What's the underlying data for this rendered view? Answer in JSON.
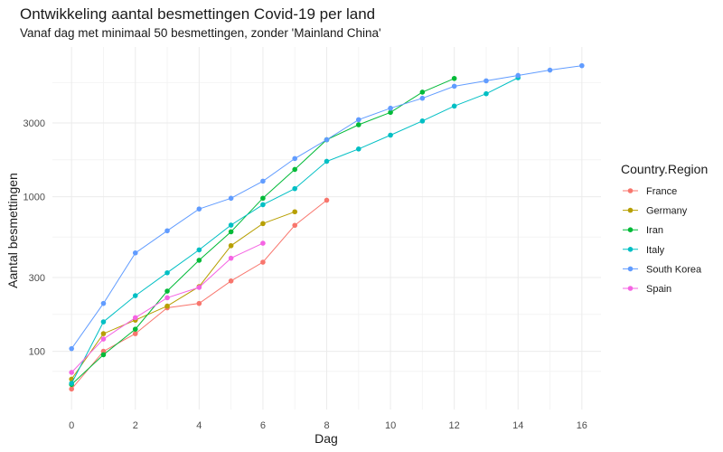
{
  "chart_data": {
    "type": "line",
    "title": "Ontwikkeling aantal besmettingen Covid-19 per land",
    "subtitle": "Vanaf dag met minimaal 50 besmettingen, zonder 'Mainland China'",
    "xlabel": "Dag",
    "ylabel": "Aantal besmettingen",
    "yscale": "log10",
    "xlim": [
      -0.6,
      16.6
    ],
    "ylim": [
      42,
      9300
    ],
    "x_ticks": [
      0,
      2,
      4,
      6,
      8,
      10,
      12,
      14,
      16
    ],
    "x_tick_labels": [
      "0",
      "2",
      "4",
      "6",
      "8",
      "10",
      "12",
      "14",
      "16"
    ],
    "y_ticks": [
      100,
      300,
      1000,
      3000
    ],
    "y_tick_labels": [
      "100",
      "300",
      "1000",
      "3000"
    ],
    "grid": true,
    "legend_title": "Country.Region",
    "legend_position": "right",
    "series": [
      {
        "name": "France",
        "color": "#F8766D",
        "x": [
          0,
          1,
          2,
          3,
          4,
          5,
          6,
          7,
          8
        ],
        "y": [
          57,
          100,
          130,
          191,
          204,
          285,
          377,
          653,
          949
        ]
      },
      {
        "name": "Germany",
        "color": "#B79F00",
        "x": [
          0,
          1,
          2,
          3,
          4,
          5,
          6,
          7
        ],
        "y": [
          66,
          130,
          159,
          196,
          262,
          482,
          670,
          799
        ]
      },
      {
        "name": "Iran",
        "color": "#00BA38",
        "x": [
          0,
          1,
          2,
          3,
          4,
          5,
          6,
          7,
          8,
          9,
          10,
          11,
          12
        ],
        "y": [
          61,
          95,
          139,
          245,
          388,
          593,
          978,
          1501,
          2336,
          2922,
          3513,
          4747,
          5823
        ]
      },
      {
        "name": "Italy",
        "color": "#00BFC4",
        "x": [
          0,
          1,
          2,
          3,
          4,
          5,
          6,
          7,
          8,
          9,
          10,
          11,
          12,
          13,
          14
        ],
        "y": [
          62,
          155,
          229,
          322,
          453,
          655,
          888,
          1128,
          1694,
          2036,
          2502,
          3089,
          3858,
          4636,
          5883
        ]
      },
      {
        "name": "South Korea",
        "color": "#619CFF",
        "x": [
          0,
          1,
          2,
          3,
          4,
          5,
          6,
          7,
          8,
          9,
          10,
          11,
          12,
          13,
          14,
          15,
          16
        ],
        "y": [
          104,
          204,
          433,
          602,
          833,
          977,
          1261,
          1766,
          2337,
          3150,
          3736,
          4335,
          5186,
          5621,
          6088,
          6593,
          7041
        ]
      },
      {
        "name": "Spain",
        "color": "#F564E3",
        "x": [
          0,
          1,
          2,
          3,
          4,
          5,
          6
        ],
        "y": [
          73,
          120,
          165,
          222,
          259,
          400,
          500
        ]
      }
    ]
  }
}
